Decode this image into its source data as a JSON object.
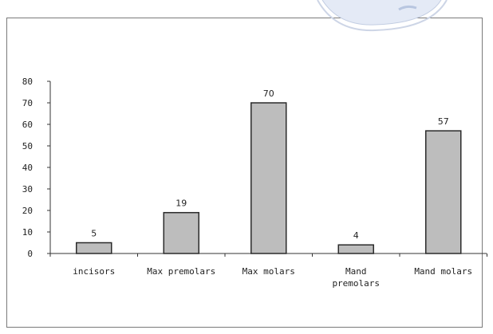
{
  "chart_data": {
    "type": "bar",
    "categories": [
      [
        "incisors"
      ],
      [
        "Max premolars"
      ],
      [
        "Max molars"
      ],
      [
        "Mand",
        "premolars"
      ],
      [
        "Mand molars"
      ]
    ],
    "values": [
      5,
      19,
      70,
      4,
      57
    ],
    "data_labels": [
      "5",
      "19",
      "70",
      "4",
      "57"
    ],
    "title": "",
    "xlabel": "",
    "ylabel": "",
    "ylim": [
      0,
      80
    ],
    "yticks": [
      "0",
      "10",
      "20",
      "30",
      "40",
      "50",
      "60",
      "70",
      "80"
    ],
    "grid": false,
    "legend": "none",
    "colors": {
      "bar_fill": "#bdbdbd",
      "bar_stroke": "#2b2b2b",
      "axis": "#333333"
    }
  }
}
